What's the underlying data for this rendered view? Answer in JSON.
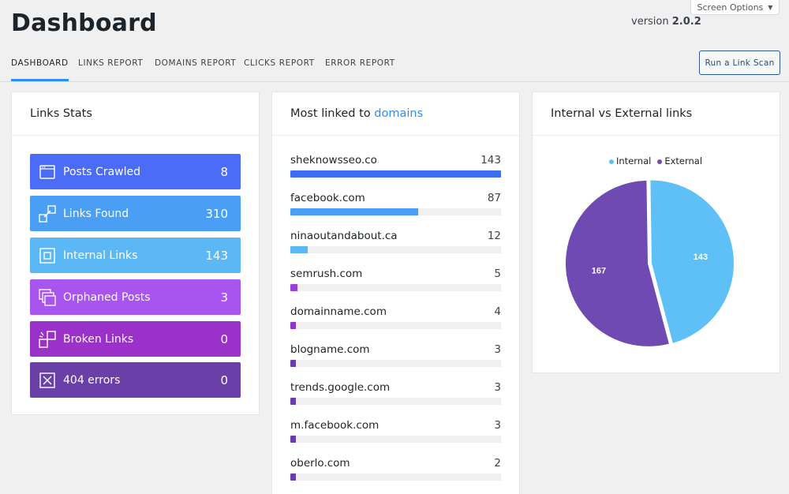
{
  "header": {
    "title": "Dashboard",
    "version_prefix": "version",
    "version": "2.0.2",
    "screen_options": "Screen Options"
  },
  "tabs": [
    {
      "label": "DASHBOARD",
      "active": true
    },
    {
      "label": "LINKS REPORT",
      "active": false
    },
    {
      "label": "DOMAINS REPORT",
      "active": false
    },
    {
      "label": "CLICKS REPORT",
      "active": false
    },
    {
      "label": "ERROR REPORT",
      "active": false
    }
  ],
  "scan_button": "Run a Link Scan",
  "links_stats": {
    "title": "Links Stats",
    "items": [
      {
        "label": "Posts Crawled",
        "value": "8",
        "color": "#4a6cf7",
        "icon": "window-icon"
      },
      {
        "label": "Links Found",
        "value": "310",
        "color": "#4a9ff5",
        "icon": "link-expand-icon"
      },
      {
        "label": "Internal Links",
        "value": "143",
        "color": "#5bb8f5",
        "icon": "square-inset-icon"
      },
      {
        "label": "Orphaned Posts",
        "value": "3",
        "color": "#a855f0",
        "icon": "stacked-windows-icon"
      },
      {
        "label": "Broken Links",
        "value": "0",
        "color": "#9a32c9",
        "icon": "broken-link-icon"
      },
      {
        "label": "404 errors",
        "value": "0",
        "color": "#6a3fa8",
        "icon": "x-box-icon"
      }
    ]
  },
  "domains": {
    "title_prefix": "Most linked to",
    "title_accent": "domains",
    "max": 143,
    "items": [
      {
        "name": "sheknowsseo.co",
        "count": 143,
        "color": "#3d6df0"
      },
      {
        "name": "facebook.com",
        "count": 87,
        "color": "#4a9ff5"
      },
      {
        "name": "ninaoutandabout.ca",
        "count": 12,
        "color": "#5bb8f5"
      },
      {
        "name": "semrush.com",
        "count": 5,
        "color": "#9b3fd6"
      },
      {
        "name": "domainname.com",
        "count": 4,
        "color": "#8f36c8"
      },
      {
        "name": "blogname.com",
        "count": 3,
        "color": "#6a3fa8"
      },
      {
        "name": "trends.google.com",
        "count": 3,
        "color": "#6a3fa8"
      },
      {
        "name": "m.facebook.com",
        "count": 3,
        "color": "#6a3fa8"
      },
      {
        "name": "oberlo.com",
        "count": 2,
        "color": "#6a3fa8"
      }
    ]
  },
  "pie": {
    "title": "Internal vs External links"
  },
  "chart_data": {
    "type": "pie",
    "title": "Internal vs External links",
    "legend_position": "top",
    "series": [
      {
        "name": "Internal",
        "value": 143,
        "color": "#5fc0f8"
      },
      {
        "name": "External",
        "value": 167,
        "color": "#6f4ab3"
      }
    ]
  }
}
